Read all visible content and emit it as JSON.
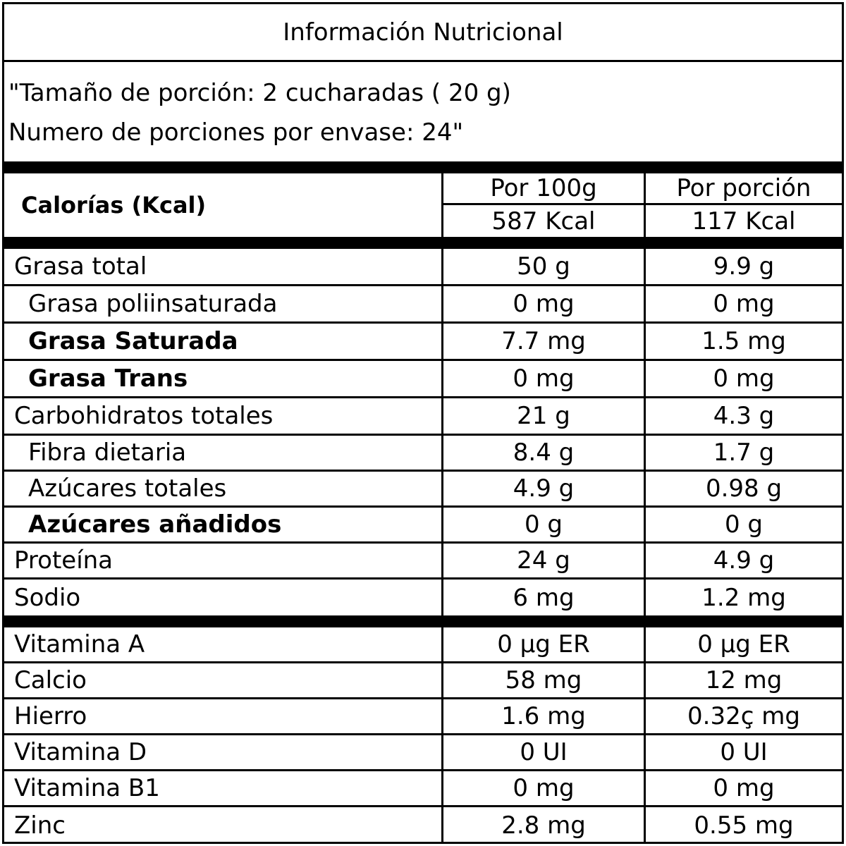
{
  "title": "Información Nutricional",
  "serving": {
    "line1": "\"Tamaño de porción: 2 cucharadas ( 20 g)",
    "line2": "Numero de porciones por envase: 24\""
  },
  "calories": {
    "label": "Calorías (Kcal)",
    "col1_header": "Por 100g",
    "col2_header": "Por porción",
    "col1_value": "587 Kcal",
    "col2_value": "117 Kcal"
  },
  "nutrients": [
    {
      "name": "Grasa total",
      "indent": 0,
      "bold": false,
      "per100": "50 g",
      "perPortion": "9.9 g"
    },
    {
      "name": "Grasa poliinsaturada",
      "indent": 1,
      "bold": false,
      "per100": "0 mg",
      "perPortion": "0 mg"
    },
    {
      "name": "Grasa Saturada",
      "indent": 1,
      "bold": true,
      "per100": "7.7 mg",
      "perPortion": "1.5 mg"
    },
    {
      "name": "Grasa Trans",
      "indent": 1,
      "bold": true,
      "per100": "0 mg",
      "perPortion": "0 mg"
    },
    {
      "name": "Carbohidratos totales",
      "indent": 0,
      "bold": false,
      "per100": "21 g",
      "perPortion": "4.3 g"
    },
    {
      "name": "Fibra dietaria",
      "indent": 1,
      "bold": false,
      "per100": "8.4 g",
      "perPortion": "1.7 g"
    },
    {
      "name": "Azúcares totales",
      "indent": 1,
      "bold": false,
      "per100": "4.9 g",
      "perPortion": "0.98 g"
    },
    {
      "name": "Azúcares añadidos",
      "indent": 1,
      "bold": true,
      "per100": "0 g",
      "perPortion": "0 g"
    },
    {
      "name": "Proteína",
      "indent": 0,
      "bold": false,
      "per100": "24 g",
      "perPortion": "4.9 g"
    },
    {
      "name": "Sodio",
      "indent": 0,
      "bold": false,
      "per100": "6 mg",
      "perPortion": "1.2 mg"
    }
  ],
  "vitamins": [
    {
      "name": "Vitamina A",
      "per100": "0 µg ER",
      "perPortion": "0 µg ER"
    },
    {
      "name": "Calcio",
      "per100": "58 mg",
      "perPortion": "12 mg"
    },
    {
      "name": "Hierro",
      "per100": "1.6 mg",
      "perPortion": "0.32ç mg"
    },
    {
      "name": "Vitamina D",
      "per100": "0 UI",
      "perPortion": "0 UI"
    },
    {
      "name": "Vitamina B1",
      "per100": "0 mg",
      "perPortion": "0 mg"
    },
    {
      "name": "Zinc",
      "per100": "2.8 mg",
      "perPortion": "0.55 mg"
    }
  ]
}
